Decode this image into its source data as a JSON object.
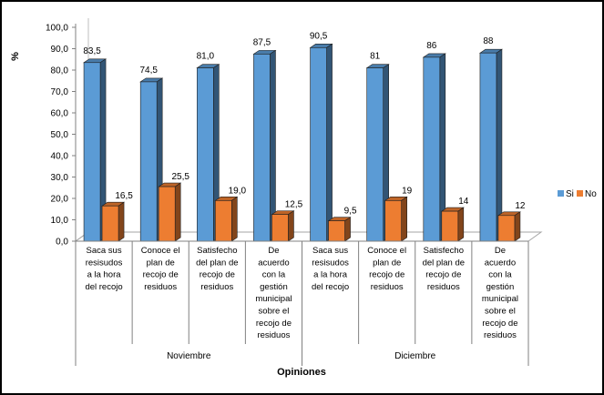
{
  "chart_data": {
    "type": "bar",
    "style": "3d-clustered-column",
    "title": "",
    "xlabel": "Opiniones",
    "ylabel": "%",
    "ylim": [
      0,
      100
    ],
    "yticks": [
      "0,0",
      "10,0",
      "20,0",
      "30,0",
      "40,0",
      "50,0",
      "60,0",
      "70,0",
      "80,0",
      "90,0",
      "100,0"
    ],
    "groups": [
      {
        "name": "Noviembre",
        "categories": [
          [
            "Saca sus",
            "resisudos",
            "a la hora",
            "del recojo"
          ],
          [
            "Conoce el",
            "plan de",
            "recojo de",
            "residuos"
          ],
          [
            "Satisfecho",
            "del plan de",
            "recojo de",
            "residuos"
          ],
          [
            "De",
            "acuerdo",
            "con la",
            "gestión",
            "municipal",
            "sobre el",
            "recojo de",
            "residuos"
          ]
        ]
      },
      {
        "name": "Diciembre",
        "categories": [
          [
            "Saca sus",
            "resisudos",
            "a la hora",
            "del recojo"
          ],
          [
            "Conoce el",
            "plan de",
            "recojo de",
            "residuos"
          ],
          [
            "Satisfecho",
            "del plan de",
            "recojo de",
            "residuos"
          ],
          [
            "De",
            "acuerdo",
            "con la",
            "gestión",
            "municipal",
            "sobre el",
            "recojo de",
            "residuos"
          ]
        ]
      }
    ],
    "series": [
      {
        "name": "Si",
        "color": "#5B9BD5",
        "values": [
          83.5,
          74.5,
          81.0,
          87.5,
          90.5,
          81,
          86,
          88
        ],
        "labels": [
          "83,5",
          "74,5",
          "81,0",
          "87,5",
          "90,5",
          "81",
          "86",
          "88"
        ]
      },
      {
        "name": "No",
        "color": "#ED7D31",
        "values": [
          16.5,
          25.5,
          19.0,
          12.5,
          9.5,
          19,
          14,
          12
        ],
        "labels": [
          "16,5",
          "25,5",
          "19,0",
          "12,5",
          "9,5",
          "19",
          "14",
          "12"
        ]
      }
    ],
    "legend": {
      "position": "right",
      "entries": [
        "Si",
        "No"
      ]
    },
    "grid": false
  }
}
